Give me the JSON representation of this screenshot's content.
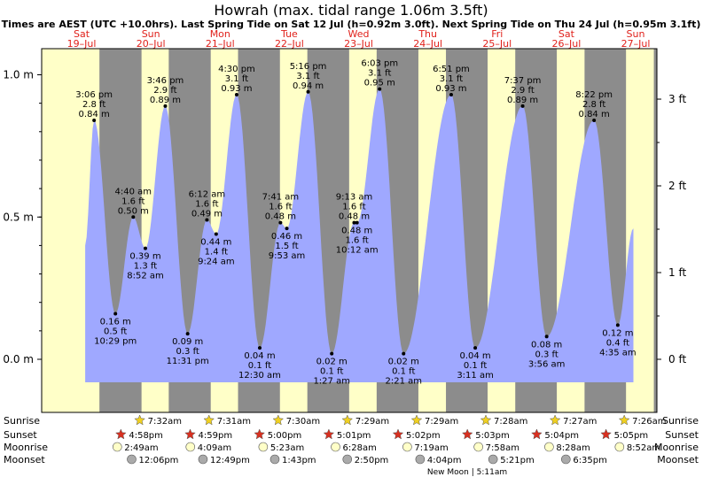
{
  "title": "Howrah (max. tidal range 1.06m 3.5ft)",
  "subtitle": "Times are AEST (UTC +10.0hrs). Last Spring Tide on Sat 12 Jul (h=0.92m 3.0ft). Next Spring Tide on Thu 24 Jul (h=0.95m 3.1ft)",
  "day_labels": [
    {
      "day": "Sat",
      "date": "19–Jul"
    },
    {
      "day": "Sun",
      "date": "20–Jul"
    },
    {
      "day": "Mon",
      "date": "21–Jul"
    },
    {
      "day": "Tue",
      "date": "22–Jul"
    },
    {
      "day": "Wed",
      "date": "23–Jul"
    },
    {
      "day": "Thu",
      "date": "24–Jul"
    },
    {
      "day": "Fri",
      "date": "25–Jul"
    },
    {
      "day": "Sat",
      "date": "26–Jul"
    },
    {
      "day": "Sun",
      "date": "27–Jul"
    }
  ],
  "row_labels": {
    "sunrise": "Sunrise",
    "sunset": "Sunset",
    "moonrise": "Moonrise",
    "moonset": "Moonset"
  },
  "moon_phase_note": "New Moon | 5:11am",
  "colors": {
    "water": "#9fa8ff",
    "day": "#ffffc8",
    "night": "#8c8c8c",
    "date_red": "#e0201a",
    "star_yellow": "#f0d020",
    "star_red": "#d83020",
    "moonrise_fill": "#ffffc8",
    "moonset_fill": "#aaaaaa"
  },
  "chart_data": {
    "type": "area",
    "x_unit": "date-time (AEST)",
    "y_left_unit": "m",
    "y_right_unit": "ft",
    "y_left_ticks": [
      "0.0 m",
      "0.5 m",
      "1.0 m"
    ],
    "y_left_tick_values": [
      0.0,
      0.5,
      1.0
    ],
    "y_right_ticks": [
      "0 ft",
      "1 ft",
      "2 ft",
      "3 ft"
    ],
    "y_right_tick_values": [
      0,
      1,
      2,
      3
    ],
    "ylim_m": [
      -0.08,
      1.1
    ],
    "xlim_hours": [
      0,
      225
    ],
    "grid": false,
    "tides": [
      {
        "time": "3:06 pm",
        "ft": "2.8 ft",
        "m": "0.84 m",
        "type": "high",
        "date": "19-Jul",
        "value": 0.84
      },
      {
        "time": "10:29 pm",
        "ft": "0.5 ft",
        "m": "0.16 m",
        "type": "low",
        "date": "19-Jul",
        "value": 0.16
      },
      {
        "time": "4:40 am",
        "ft": "1.6 ft",
        "m": "0.50 m",
        "type": "high",
        "date": "20-Jul",
        "value": 0.5
      },
      {
        "time": "8:52 am",
        "ft": "1.3 ft",
        "m": "0.39 m",
        "type": "low",
        "date": "20-Jul",
        "value": 0.39
      },
      {
        "time": "3:46 pm",
        "ft": "2.9 ft",
        "m": "0.89 m",
        "type": "high",
        "date": "20-Jul",
        "value": 0.89
      },
      {
        "time": "11:31 pm",
        "ft": "0.3 ft",
        "m": "0.09 m",
        "type": "low",
        "date": "20-Jul",
        "value": 0.09
      },
      {
        "time": "6:12 am",
        "ft": "1.6 ft",
        "m": "0.49 m",
        "type": "high",
        "date": "21-Jul",
        "value": 0.49
      },
      {
        "time": "9:24 am",
        "ft": "1.4 ft",
        "m": "0.44 m",
        "type": "low",
        "date": "21-Jul",
        "value": 0.44
      },
      {
        "time": "4:30 pm",
        "ft": "3.1 ft",
        "m": "0.93 m",
        "type": "high",
        "date": "21-Jul",
        "value": 0.93
      },
      {
        "time": "12:30 am",
        "ft": "0.1 ft",
        "m": "0.04 m",
        "type": "low",
        "date": "22-Jul",
        "value": 0.04
      },
      {
        "time": "7:41 am",
        "ft": "1.6 ft",
        "m": "0.48 m",
        "type": "high",
        "date": "22-Jul",
        "value": 0.48
      },
      {
        "time": "9:53 am",
        "ft": "1.5 ft",
        "m": "0.46 m",
        "type": "low",
        "date": "22-Jul",
        "value": 0.46
      },
      {
        "time": "5:16 pm",
        "ft": "3.1 ft",
        "m": "0.94 m",
        "type": "high",
        "date": "22-Jul",
        "value": 0.94
      },
      {
        "time": "1:27 am",
        "ft": "0.1 ft",
        "m": "0.02 m",
        "type": "low",
        "date": "23-Jul",
        "value": 0.02
      },
      {
        "time": "9:13 am",
        "ft": "1.6 ft",
        "m": "0.48 m",
        "type": "high",
        "date": "23-Jul",
        "value": 0.48
      },
      {
        "time": "10:12 am",
        "ft": "1.6 ft",
        "m": "0.48 m",
        "type": "low",
        "date": "23-Jul",
        "value": 0.48
      },
      {
        "time": "6:03 pm",
        "ft": "3.1 ft",
        "m": "0.95 m",
        "type": "high",
        "date": "23-Jul",
        "value": 0.95
      },
      {
        "time": "2:21 am",
        "ft": "0.1 ft",
        "m": "0.02 m",
        "type": "low",
        "date": "24-Jul",
        "value": 0.02
      },
      {
        "time": "6:51 pm",
        "ft": "3.1 ft",
        "m": "0.93 m",
        "type": "high",
        "date": "24-Jul",
        "value": 0.93
      },
      {
        "time": "3:11 am",
        "ft": "0.1 ft",
        "m": "0.04 m",
        "type": "low",
        "date": "25-Jul",
        "value": 0.04
      },
      {
        "time": "7:37 pm",
        "ft": "2.9 ft",
        "m": "0.89 m",
        "type": "high",
        "date": "25-Jul",
        "value": 0.89
      },
      {
        "time": "3:56 am",
        "ft": "0.3 ft",
        "m": "0.08 m",
        "type": "low",
        "date": "26-Jul",
        "value": 0.08
      },
      {
        "time": "8:22 pm",
        "ft": "2.8 ft",
        "m": "0.84 m",
        "type": "high",
        "date": "26-Jul",
        "value": 0.84
      },
      {
        "time": "4:35 am",
        "ft": "0.4 ft",
        "m": "0.12 m",
        "type": "low",
        "date": "27-Jul",
        "value": 0.12
      }
    ],
    "sunrise": [
      "7:32am",
      "7:31am",
      "7:30am",
      "7:29am",
      "7:29am",
      "7:28am",
      "7:27am",
      "7:26am"
    ],
    "sunset": [
      "4:58pm",
      "4:59pm",
      "5:00pm",
      "5:01pm",
      "5:02pm",
      "5:03pm",
      "5:04pm",
      "5:05pm"
    ],
    "moonrise": [
      "2:49am",
      "4:09am",
      "5:23am",
      "6:28am",
      "7:19am",
      "7:58am",
      "8:28am",
      "8:52am"
    ],
    "moonset": [
      "12:06pm",
      "12:49pm",
      "1:43pm",
      "2:50pm",
      "4:04pm",
      "5:21pm",
      "6:35pm"
    ]
  }
}
